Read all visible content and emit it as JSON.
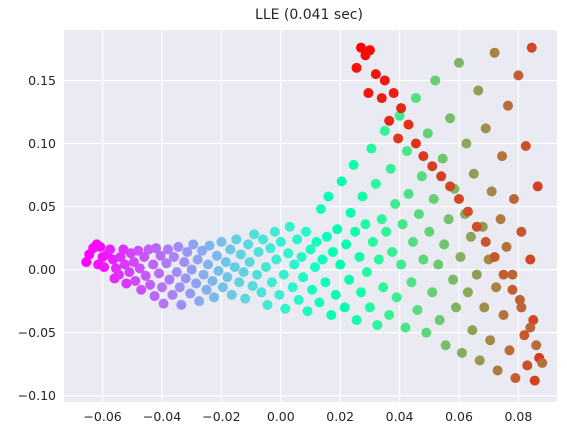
{
  "chart_data": {
    "type": "scatter",
    "title": "LLE (0.041 sec)",
    "xlabel": "",
    "ylabel": "",
    "xlim": [
      -0.073,
      0.093
    ],
    "ylim": [
      -0.105,
      0.19
    ],
    "x_ticks": [
      -0.06,
      -0.04,
      -0.02,
      0.0,
      0.02,
      0.04,
      0.06,
      0.08
    ],
    "x_tick_labels": [
      "−0.06",
      "−0.04",
      "−0.02",
      "0.00",
      "0.02",
      "0.04",
      "0.06",
      "0.08"
    ],
    "y_ticks": [
      -0.1,
      -0.05,
      0.0,
      0.05,
      0.1,
      0.15
    ],
    "y_tick_labels": [
      "−0.10",
      "−0.05",
      "0.00",
      "0.05",
      "0.10",
      "0.15"
    ],
    "grid": true,
    "background_color": "#eaeaf2",
    "grid_color": "#ffffff",
    "colormap": "rainbow",
    "marker": "circle",
    "note_color": "points are colored by their position along the manifold (violet → red)",
    "points": [
      {
        "x": -0.0655,
        "y": 0.006,
        "c": 0.0
      },
      {
        "x": -0.0645,
        "y": 0.012,
        "c": 0.0
      },
      {
        "x": -0.0632,
        "y": 0.017,
        "c": 0.01
      },
      {
        "x": -0.062,
        "y": 0.02,
        "c": 0.01
      },
      {
        "x": -0.0608,
        "y": 0.018,
        "c": 0.01
      },
      {
        "x": -0.06,
        "y": 0.01,
        "c": 0.02
      },
      {
        "x": -0.0615,
        "y": 0.004,
        "c": 0.02
      },
      {
        "x": -0.0595,
        "y": 0.002,
        "c": 0.03
      },
      {
        "x": -0.0585,
        "y": 0.012,
        "c": 0.03
      },
      {
        "x": -0.0575,
        "y": 0.016,
        "c": 0.04
      },
      {
        "x": -0.0565,
        "y": 0.008,
        "c": 0.04
      },
      {
        "x": -0.0555,
        "y": 0.001,
        "c": 0.05
      },
      {
        "x": -0.056,
        "y": -0.007,
        "c": 0.05
      },
      {
        "x": -0.0545,
        "y": -0.004,
        "c": 0.06
      },
      {
        "x": -0.054,
        "y": 0.01,
        "c": 0.06
      },
      {
        "x": -0.053,
        "y": 0.016,
        "c": 0.06
      },
      {
        "x": -0.0525,
        "y": 0.004,
        "c": 0.07
      },
      {
        "x": -0.052,
        "y": -0.011,
        "c": 0.07
      },
      {
        "x": -0.051,
        "y": -0.002,
        "c": 0.08
      },
      {
        "x": -0.0505,
        "y": 0.013,
        "c": 0.08
      },
      {
        "x": -0.0495,
        "y": 0.006,
        "c": 0.09
      },
      {
        "x": -0.049,
        "y": -0.009,
        "c": 0.09
      },
      {
        "x": -0.048,
        "y": 0.015,
        "c": 0.1
      },
      {
        "x": -0.0475,
        "y": 0.001,
        "c": 0.1
      },
      {
        "x": -0.047,
        "y": -0.016,
        "c": 0.1
      },
      {
        "x": -0.046,
        "y": 0.01,
        "c": 0.11
      },
      {
        "x": -0.0455,
        "y": -0.005,
        "c": 0.11
      },
      {
        "x": -0.0445,
        "y": 0.016,
        "c": 0.12
      },
      {
        "x": -0.044,
        "y": -0.012,
        "c": 0.12
      },
      {
        "x": -0.043,
        "y": 0.004,
        "c": 0.13
      },
      {
        "x": -0.0425,
        "y": -0.021,
        "c": 0.13
      },
      {
        "x": -0.042,
        "y": 0.017,
        "c": 0.13
      },
      {
        "x": -0.041,
        "y": -0.003,
        "c": 0.14
      },
      {
        "x": -0.0405,
        "y": 0.011,
        "c": 0.14
      },
      {
        "x": -0.04,
        "y": -0.014,
        "c": 0.15
      },
      {
        "x": -0.0395,
        "y": -0.027,
        "c": 0.15
      },
      {
        "x": -0.0385,
        "y": 0.005,
        "c": 0.16
      },
      {
        "x": -0.038,
        "y": 0.016,
        "c": 0.16
      },
      {
        "x": -0.0375,
        "y": -0.008,
        "c": 0.16
      },
      {
        "x": -0.0365,
        "y": -0.02,
        "c": 0.17
      },
      {
        "x": -0.036,
        "y": 0.01,
        "c": 0.17
      },
      {
        "x": -0.035,
        "y": -0.002,
        "c": 0.18
      },
      {
        "x": -0.0345,
        "y": 0.018,
        "c": 0.18
      },
      {
        "x": -0.034,
        "y": -0.014,
        "c": 0.19
      },
      {
        "x": -0.0335,
        "y": -0.028,
        "c": 0.19
      },
      {
        "x": -0.0325,
        "y": 0.006,
        "c": 0.19
      },
      {
        "x": -0.032,
        "y": -0.007,
        "c": 0.2
      },
      {
        "x": -0.0315,
        "y": 0.014,
        "c": 0.2
      },
      {
        "x": -0.0305,
        "y": -0.019,
        "c": 0.21
      },
      {
        "x": -0.03,
        "y": 0.0,
        "c": 0.21
      },
      {
        "x": -0.0295,
        "y": 0.02,
        "c": 0.22
      },
      {
        "x": -0.0285,
        "y": -0.011,
        "c": 0.22
      },
      {
        "x": -0.028,
        "y": 0.008,
        "c": 0.22
      },
      {
        "x": -0.0275,
        "y": -0.025,
        "c": 0.23
      },
      {
        "x": -0.0265,
        "y": 0.015,
        "c": 0.23
      },
      {
        "x": -0.026,
        "y": -0.004,
        "c": 0.24
      },
      {
        "x": -0.025,
        "y": -0.016,
        "c": 0.24
      },
      {
        "x": -0.0245,
        "y": 0.004,
        "c": 0.25
      },
      {
        "x": -0.024,
        "y": 0.019,
        "c": 0.25
      },
      {
        "x": -0.023,
        "y": -0.009,
        "c": 0.25
      },
      {
        "x": -0.0225,
        "y": -0.022,
        "c": 0.26
      },
      {
        "x": -0.0215,
        "y": 0.011,
        "c": 0.26
      },
      {
        "x": -0.021,
        "y": -0.001,
        "c": 0.27
      },
      {
        "x": -0.02,
        "y": 0.022,
        "c": 0.27
      },
      {
        "x": -0.0195,
        "y": -0.014,
        "c": 0.28
      },
      {
        "x": -0.0185,
        "y": 0.006,
        "c": 0.28
      },
      {
        "x": -0.018,
        "y": -0.006,
        "c": 0.28
      },
      {
        "x": -0.017,
        "y": 0.016,
        "c": 0.29
      },
      {
        "x": -0.0165,
        "y": -0.02,
        "c": 0.29
      },
      {
        "x": -0.0155,
        "y": 0.002,
        "c": 0.3
      },
      {
        "x": -0.015,
        "y": 0.024,
        "c": 0.3
      },
      {
        "x": -0.014,
        "y": -0.01,
        "c": 0.31
      },
      {
        "x": -0.0135,
        "y": 0.012,
        "c": 0.31
      },
      {
        "x": -0.0125,
        "y": -0.002,
        "c": 0.31
      },
      {
        "x": -0.012,
        "y": -0.023,
        "c": 0.32
      },
      {
        "x": -0.011,
        "y": 0.02,
        "c": 0.32
      },
      {
        "x": -0.0105,
        "y": 0.006,
        "c": 0.33
      },
      {
        "x": -0.0095,
        "y": -0.013,
        "c": 0.33
      },
      {
        "x": -0.009,
        "y": 0.028,
        "c": 0.34
      },
      {
        "x": -0.008,
        "y": -0.004,
        "c": 0.34
      },
      {
        "x": -0.0075,
        "y": 0.014,
        "c": 0.34
      },
      {
        "x": -0.0065,
        "y": -0.018,
        "c": 0.35
      },
      {
        "x": -0.006,
        "y": 0.024,
        "c": 0.35
      },
      {
        "x": -0.005,
        "y": 0.002,
        "c": 0.36
      },
      {
        "x": -0.0045,
        "y": -0.028,
        "c": 0.36
      },
      {
        "x": -0.0035,
        "y": 0.017,
        "c": 0.37
      },
      {
        "x": -0.003,
        "y": -0.01,
        "c": 0.37
      },
      {
        "x": -0.002,
        "y": 0.03,
        "c": 0.37
      },
      {
        "x": -0.0015,
        "y": 0.008,
        "c": 0.38
      },
      {
        "x": -0.0005,
        "y": -0.02,
        "c": 0.38
      },
      {
        "x": 0.0,
        "y": 0.022,
        "c": 0.39
      },
      {
        "x": 0.001,
        "y": -0.004,
        "c": 0.39
      },
      {
        "x": 0.0015,
        "y": -0.031,
        "c": 0.4
      },
      {
        "x": 0.0025,
        "y": 0.013,
        "c": 0.4
      },
      {
        "x": 0.003,
        "y": 0.034,
        "c": 0.4
      },
      {
        "x": 0.004,
        "y": -0.014,
        "c": 0.41
      },
      {
        "x": 0.0045,
        "y": 0.004,
        "c": 0.41
      },
      {
        "x": 0.0055,
        "y": 0.024,
        "c": 0.42
      },
      {
        "x": 0.006,
        "y": -0.024,
        "c": 0.42
      },
      {
        "x": 0.007,
        "y": 0.01,
        "c": 0.43
      },
      {
        "x": 0.0075,
        "y": -0.006,
        "c": 0.43
      },
      {
        "x": 0.0085,
        "y": 0.03,
        "c": 0.43
      },
      {
        "x": 0.009,
        "y": -0.033,
        "c": 0.44
      },
      {
        "x": 0.01,
        "y": 0.016,
        "c": 0.44
      },
      {
        "x": 0.0105,
        "y": -0.016,
        "c": 0.45
      },
      {
        "x": 0.0115,
        "y": 0.002,
        "c": 0.45
      },
      {
        "x": 0.012,
        "y": 0.022,
        "c": 0.46
      },
      {
        "x": 0.013,
        "y": -0.026,
        "c": 0.46
      },
      {
        "x": 0.0135,
        "y": 0.048,
        "c": 0.46
      },
      {
        "x": 0.014,
        "y": 0.008,
        "c": 0.47
      },
      {
        "x": 0.015,
        "y": -0.01,
        "c": 0.47
      },
      {
        "x": 0.0155,
        "y": 0.026,
        "c": 0.48
      },
      {
        "x": 0.016,
        "y": 0.058,
        "c": 0.48
      },
      {
        "x": 0.017,
        "y": -0.036,
        "c": 0.49
      },
      {
        "x": 0.0175,
        "y": 0.014,
        "c": 0.49
      },
      {
        "x": 0.0185,
        "y": -0.02,
        "c": 0.49
      },
      {
        "x": 0.019,
        "y": 0.032,
        "c": 0.5
      },
      {
        "x": 0.02,
        "y": 0.004,
        "c": 0.5
      },
      {
        "x": 0.0205,
        "y": 0.07,
        "c": 0.51
      },
      {
        "x": 0.0215,
        "y": -0.03,
        "c": 0.51
      },
      {
        "x": 0.022,
        "y": 0.02,
        "c": 0.52
      },
      {
        "x": 0.023,
        "y": -0.008,
        "c": 0.52
      },
      {
        "x": 0.0235,
        "y": 0.045,
        "c": 0.52
      },
      {
        "x": 0.0245,
        "y": 0.083,
        "c": 0.53
      },
      {
        "x": 0.025,
        "y": 0.03,
        "c": 0.53
      },
      {
        "x": 0.0255,
        "y": -0.04,
        "c": 0.54
      },
      {
        "x": 0.0265,
        "y": 0.01,
        "c": 0.54
      },
      {
        "x": 0.027,
        "y": -0.018,
        "c": 0.55
      },
      {
        "x": 0.0275,
        "y": 0.058,
        "c": 0.55
      },
      {
        "x": 0.0285,
        "y": 0.036,
        "c": 0.55
      },
      {
        "x": 0.029,
        "y": -0.002,
        "c": 0.56
      },
      {
        "x": 0.03,
        "y": -0.03,
        "c": 0.56
      },
      {
        "x": 0.0305,
        "y": 0.096,
        "c": 0.57
      },
      {
        "x": 0.031,
        "y": 0.022,
        "c": 0.57
      },
      {
        "x": 0.032,
        "y": 0.068,
        "c": 0.58
      },
      {
        "x": 0.0325,
        "y": -0.044,
        "c": 0.58
      },
      {
        "x": 0.033,
        "y": 0.008,
        "c": 0.58
      },
      {
        "x": 0.034,
        "y": 0.04,
        "c": 0.59
      },
      {
        "x": 0.0345,
        "y": -0.014,
        "c": 0.59
      },
      {
        "x": 0.035,
        "y": 0.11,
        "c": 0.6
      },
      {
        "x": 0.0355,
        "y": 0.03,
        "c": 0.6
      },
      {
        "x": 0.0365,
        "y": -0.036,
        "c": 0.61
      },
      {
        "x": 0.037,
        "y": 0.08,
        "c": 0.61
      },
      {
        "x": 0.0375,
        "y": 0.014,
        "c": 0.61
      },
      {
        "x": 0.0385,
        "y": 0.052,
        "c": 0.62
      },
      {
        "x": 0.039,
        "y": -0.022,
        "c": 0.62
      },
      {
        "x": 0.04,
        "y": 0.122,
        "c": 0.63
      },
      {
        "x": 0.0405,
        "y": 0.004,
        "c": 0.63
      },
      {
        "x": 0.041,
        "y": 0.036,
        "c": 0.64
      },
      {
        "x": 0.042,
        "y": -0.046,
        "c": 0.64
      },
      {
        "x": 0.0425,
        "y": 0.094,
        "c": 0.64
      },
      {
        "x": 0.043,
        "y": 0.06,
        "c": 0.65
      },
      {
        "x": 0.044,
        "y": -0.01,
        "c": 0.65
      },
      {
        "x": 0.0445,
        "y": 0.022,
        "c": 0.66
      },
      {
        "x": 0.0455,
        "y": 0.136,
        "c": 0.66
      },
      {
        "x": 0.046,
        "y": -0.032,
        "c": 0.67
      },
      {
        "x": 0.0465,
        "y": 0.044,
        "c": 0.67
      },
      {
        "x": 0.0475,
        "y": 0.074,
        "c": 0.67
      },
      {
        "x": 0.048,
        "y": 0.008,
        "c": 0.68
      },
      {
        "x": 0.049,
        "y": -0.05,
        "c": 0.68
      },
      {
        "x": 0.0495,
        "y": 0.108,
        "c": 0.69
      },
      {
        "x": 0.05,
        "y": 0.03,
        "c": 0.69
      },
      {
        "x": 0.051,
        "y": -0.018,
        "c": 0.7
      },
      {
        "x": 0.0515,
        "y": 0.056,
        "c": 0.7
      },
      {
        "x": 0.052,
        "y": 0.15,
        "c": 0.7
      },
      {
        "x": 0.053,
        "y": 0.004,
        "c": 0.71
      },
      {
        "x": 0.0535,
        "y": -0.04,
        "c": 0.71
      },
      {
        "x": 0.0545,
        "y": 0.088,
        "c": 0.72
      },
      {
        "x": 0.055,
        "y": 0.02,
        "c": 0.72
      },
      {
        "x": 0.0555,
        "y": -0.06,
        "c": 0.73
      },
      {
        "x": 0.0565,
        "y": 0.04,
        "c": 0.73
      },
      {
        "x": 0.057,
        "y": 0.12,
        "c": 0.73
      },
      {
        "x": 0.058,
        "y": -0.008,
        "c": 0.74
      },
      {
        "x": 0.0585,
        "y": 0.064,
        "c": 0.74
      },
      {
        "x": 0.059,
        "y": -0.03,
        "c": 0.75
      },
      {
        "x": 0.06,
        "y": 0.164,
        "c": 0.75
      },
      {
        "x": 0.0605,
        "y": 0.01,
        "c": 0.76
      },
      {
        "x": 0.061,
        "y": -0.066,
        "c": 0.76
      },
      {
        "x": 0.062,
        "y": 0.044,
        "c": 0.76
      },
      {
        "x": 0.0625,
        "y": 0.1,
        "c": 0.77
      },
      {
        "x": 0.063,
        "y": -0.018,
        "c": 0.77
      },
      {
        "x": 0.064,
        "y": 0.026,
        "c": 0.78
      },
      {
        "x": 0.0645,
        "y": -0.048,
        "c": 0.78
      },
      {
        "x": 0.065,
        "y": 0.076,
        "c": 0.79
      },
      {
        "x": 0.066,
        "y": -0.004,
        "c": 0.79
      },
      {
        "x": 0.0665,
        "y": 0.142,
        "c": 0.79
      },
      {
        "x": 0.067,
        "y": -0.072,
        "c": 0.8
      },
      {
        "x": 0.068,
        "y": 0.034,
        "c": 0.8
      },
      {
        "x": 0.0685,
        "y": -0.03,
        "c": 0.81
      },
      {
        "x": 0.069,
        "y": 0.112,
        "c": 0.81
      },
      {
        "x": 0.07,
        "y": 0.008,
        "c": 0.82
      },
      {
        "x": 0.0705,
        "y": -0.056,
        "c": 0.82
      },
      {
        "x": 0.071,
        "y": 0.062,
        "c": 0.82
      },
      {
        "x": 0.072,
        "y": 0.172,
        "c": 0.83
      },
      {
        "x": 0.0725,
        "y": -0.014,
        "c": 0.83
      },
      {
        "x": 0.073,
        "y": -0.08,
        "c": 0.84
      },
      {
        "x": 0.074,
        "y": 0.04,
        "c": 0.84
      },
      {
        "x": 0.0745,
        "y": 0.09,
        "c": 0.85
      },
      {
        "x": 0.075,
        "y": -0.036,
        "c": 0.85
      },
      {
        "x": 0.076,
        "y": 0.018,
        "c": 0.85
      },
      {
        "x": 0.0765,
        "y": 0.13,
        "c": 0.86
      },
      {
        "x": 0.077,
        "y": -0.064,
        "c": 0.86
      },
      {
        "x": 0.078,
        "y": -0.004,
        "c": 0.87
      },
      {
        "x": 0.0785,
        "y": 0.056,
        "c": 0.87
      },
      {
        "x": 0.079,
        "y": -0.086,
        "c": 0.88
      },
      {
        "x": 0.08,
        "y": 0.154,
        "c": 0.88
      },
      {
        "x": 0.0805,
        "y": -0.024,
        "c": 0.88
      },
      {
        "x": 0.081,
        "y": 0.03,
        "c": 0.89
      },
      {
        "x": 0.082,
        "y": -0.052,
        "c": 0.89
      },
      {
        "x": 0.0825,
        "y": 0.098,
        "c": 0.9
      },
      {
        "x": 0.083,
        "y": -0.076,
        "c": 0.9
      },
      {
        "x": 0.084,
        "y": 0.008,
        "c": 0.91
      },
      {
        "x": 0.0845,
        "y": 0.176,
        "c": 0.91
      },
      {
        "x": 0.085,
        "y": -0.04,
        "c": 0.91
      },
      {
        "x": 0.0855,
        "y": -0.088,
        "c": 0.92
      },
      {
        "x": 0.0865,
        "y": 0.066,
        "c": 0.92
      },
      {
        "x": 0.087,
        "y": -0.07,
        "c": 0.93
      },
      {
        "x": 0.027,
        "y": 0.176,
        "c": 1.0
      },
      {
        "x": 0.0285,
        "y": 0.17,
        "c": 0.99
      },
      {
        "x": 0.03,
        "y": 0.174,
        "c": 0.99
      },
      {
        "x": 0.0255,
        "y": 0.16,
        "c": 0.98
      },
      {
        "x": 0.032,
        "y": 0.155,
        "c": 0.98
      },
      {
        "x": 0.035,
        "y": 0.15,
        "c": 0.97
      },
      {
        "x": 0.0295,
        "y": 0.14,
        "c": 0.97
      },
      {
        "x": 0.034,
        "y": 0.136,
        "c": 0.96
      },
      {
        "x": 0.038,
        "y": 0.14,
        "c": 0.96
      },
      {
        "x": 0.0405,
        "y": 0.128,
        "c": 0.95
      },
      {
        "x": 0.0365,
        "y": 0.118,
        "c": 0.95
      },
      {
        "x": 0.043,
        "y": 0.115,
        "c": 0.94
      },
      {
        "x": 0.0455,
        "y": 0.1,
        "c": 0.94
      },
      {
        "x": 0.0395,
        "y": 0.104,
        "c": 0.93
      },
      {
        "x": 0.048,
        "y": 0.09,
        "c": 0.93
      },
      {
        "x": 0.051,
        "y": 0.082,
        "c": 0.92
      },
      {
        "x": 0.054,
        "y": 0.074,
        "c": 0.92
      },
      {
        "x": 0.057,
        "y": 0.066,
        "c": 0.91
      },
      {
        "x": 0.06,
        "y": 0.056,
        "c": 0.91
      },
      {
        "x": 0.063,
        "y": 0.046,
        "c": 0.9
      },
      {
        "x": 0.066,
        "y": 0.034,
        "c": 0.9
      },
      {
        "x": 0.069,
        "y": 0.022,
        "c": 0.89
      },
      {
        "x": 0.072,
        "y": 0.01,
        "c": 0.89
      },
      {
        "x": 0.075,
        "y": -0.004,
        "c": 0.88
      },
      {
        "x": 0.078,
        "y": -0.016,
        "c": 0.88
      },
      {
        "x": 0.081,
        "y": -0.03,
        "c": 0.87
      },
      {
        "x": 0.084,
        "y": -0.046,
        "c": 0.87
      },
      {
        "x": 0.086,
        "y": -0.06,
        "c": 0.86
      },
      {
        "x": 0.088,
        "y": -0.074,
        "c": 0.86
      }
    ]
  }
}
